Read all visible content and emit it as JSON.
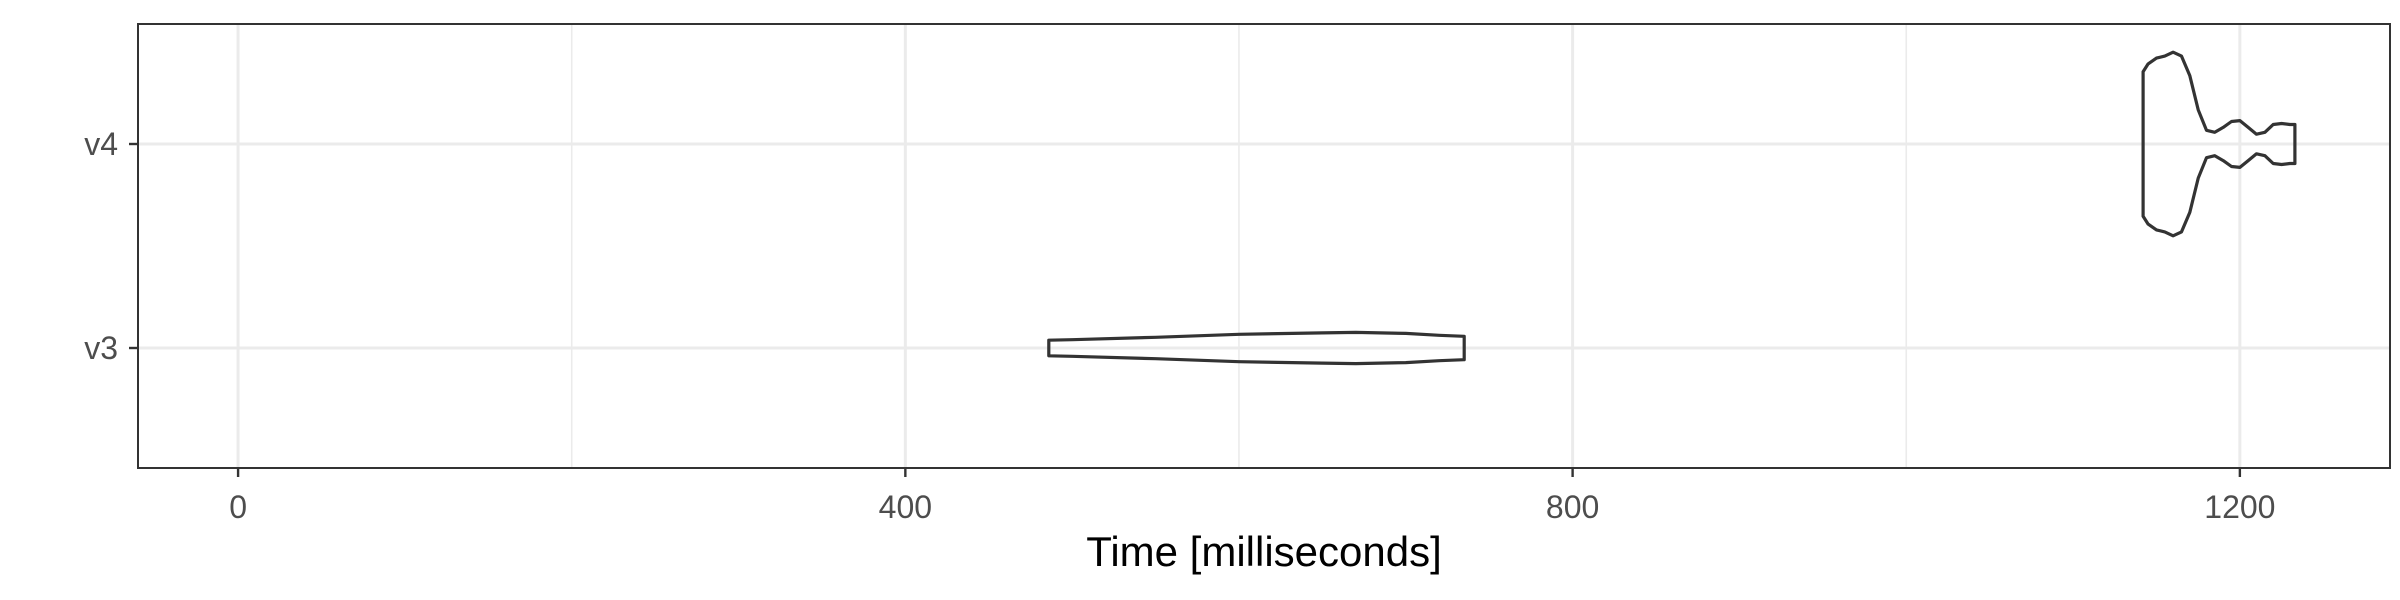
{
  "chart_data": {
    "type": "violin",
    "orientation": "horizontal",
    "title": "",
    "xlabel": "Time [milliseconds]",
    "ylabel": "",
    "xlim": [
      -60,
      1290
    ],
    "x_ticks": [
      0,
      400,
      800,
      1200
    ],
    "x_minor_ticks": [
      200,
      600,
      1000
    ],
    "categories": [
      "v3",
      "v4"
    ],
    "grid": true,
    "legend": "none",
    "colors": {
      "outline": "#333333",
      "grid": "#ebebeb",
      "panel_border": "#333333",
      "background": "#ffffff"
    },
    "series": [
      {
        "category": "v3",
        "min": 486,
        "max": 735,
        "density_profile": [
          [
            486,
            0.08
          ],
          [
            500,
            0.085
          ],
          [
            550,
            0.11
          ],
          [
            600,
            0.14
          ],
          [
            650,
            0.155
          ],
          [
            670,
            0.16
          ],
          [
            700,
            0.15
          ],
          [
            720,
            0.13
          ],
          [
            735,
            0.12
          ]
        ]
      },
      {
        "category": "v4",
        "min": 1142,
        "max": 1233,
        "density_profile": [
          [
            1142,
            0.74
          ],
          [
            1145,
            0.82
          ],
          [
            1150,
            0.88
          ],
          [
            1155,
            0.9
          ],
          [
            1160,
            0.94
          ],
          [
            1165,
            0.9
          ],
          [
            1170,
            0.7
          ],
          [
            1175,
            0.35
          ],
          [
            1180,
            0.14
          ],
          [
            1185,
            0.12
          ],
          [
            1190,
            0.17
          ],
          [
            1195,
            0.23
          ],
          [
            1200,
            0.24
          ],
          [
            1205,
            0.17
          ],
          [
            1210,
            0.1
          ],
          [
            1215,
            0.12
          ],
          [
            1220,
            0.2
          ],
          [
            1225,
            0.21
          ],
          [
            1230,
            0.2
          ],
          [
            1233,
            0.2
          ]
        ]
      }
    ]
  }
}
